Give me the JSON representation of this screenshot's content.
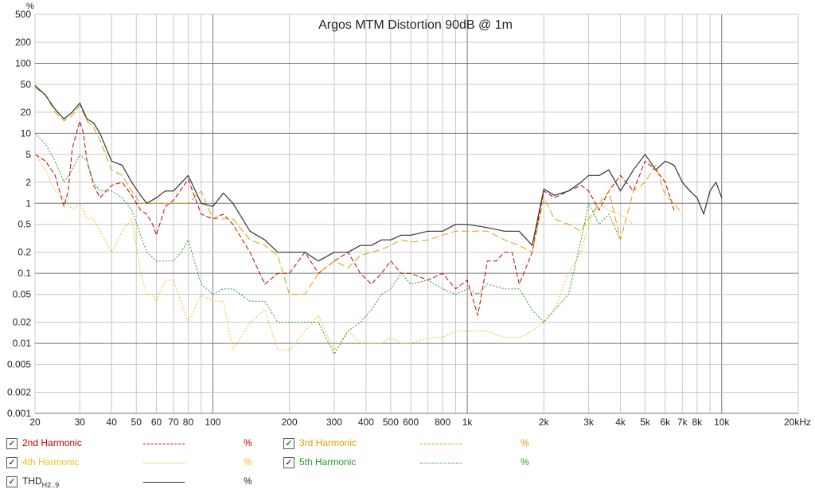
{
  "chart_data": {
    "type": "line",
    "title": "Argos MTM Distortion 90dB @ 1m",
    "ylabel": "%",
    "xlabel": "",
    "xscale": "log",
    "yscale": "log",
    "xlim": [
      20,
      20000
    ],
    "ylim": [
      0.001,
      500
    ],
    "x_ticks": [
      {
        "v": 20,
        "label": "20"
      },
      {
        "v": 30,
        "label": "30"
      },
      {
        "v": 40,
        "label": "40"
      },
      {
        "v": 50,
        "label": "50"
      },
      {
        "v": 60,
        "label": "60"
      },
      {
        "v": 70,
        "label": "70"
      },
      {
        "v": 80,
        "label": "80"
      },
      {
        "v": 100,
        "label": "100"
      },
      {
        "v": 200,
        "label": "200"
      },
      {
        "v": 300,
        "label": "300"
      },
      {
        "v": 400,
        "label": "400"
      },
      {
        "v": 500,
        "label": "500"
      },
      {
        "v": 600,
        "label": "600"
      },
      {
        "v": 800,
        "label": "800"
      },
      {
        "v": 1000,
        "label": "1k"
      },
      {
        "v": 2000,
        "label": "2k"
      },
      {
        "v": 3000,
        "label": "3k"
      },
      {
        "v": 4000,
        "label": "4k"
      },
      {
        "v": 5000,
        "label": "5k"
      },
      {
        "v": 6000,
        "label": "6k"
      },
      {
        "v": 7000,
        "label": "7k"
      },
      {
        "v": 8000,
        "label": "8k"
      },
      {
        "v": 10000,
        "label": "10k"
      },
      {
        "v": 20000,
        "label": "20kHz"
      }
    ],
    "y_ticks": [
      {
        "v": 500,
        "label": "500"
      },
      {
        "v": 200,
        "label": "200"
      },
      {
        "v": 100,
        "label": "100"
      },
      {
        "v": 50,
        "label": "50"
      },
      {
        "v": 20,
        "label": "20"
      },
      {
        "v": 10,
        "label": "10"
      },
      {
        "v": 5,
        "label": "5"
      },
      {
        "v": 2,
        "label": "2"
      },
      {
        "v": 1,
        "label": "1"
      },
      {
        "v": 0.5,
        "label": "0.5"
      },
      {
        "v": 0.2,
        "label": "0.2"
      },
      {
        "v": 0.1,
        "label": "0.1"
      },
      {
        "v": 0.05,
        "label": "0.05"
      },
      {
        "v": 0.02,
        "label": "0.02"
      },
      {
        "v": 0.01,
        "label": "0.01"
      },
      {
        "v": 0.005,
        "label": "0.005"
      },
      {
        "v": 0.002,
        "label": "0.002"
      },
      {
        "v": 0.001,
        "label": "0.001"
      }
    ],
    "grid": true,
    "legend_position": "bottom",
    "series": [
      {
        "name": "2nd Harmonic",
        "name_sub": "",
        "unit": "%",
        "color": "#c00000",
        "dash": "6,3",
        "x": [
          20,
          22,
          24,
          26,
          27,
          28,
          30,
          31,
          32,
          34,
          36,
          40,
          44,
          48,
          52,
          55,
          58,
          60,
          65,
          70,
          80,
          90,
          100,
          110,
          120,
          140,
          160,
          180,
          200,
          230,
          260,
          300,
          340,
          380,
          420,
          460,
          500,
          550,
          600,
          700,
          800,
          900,
          1000,
          1100,
          1200,
          1300,
          1400,
          1500,
          1600,
          1800,
          2000,
          2200,
          2500,
          2800,
          3000,
          3300,
          3600,
          4000,
          4500,
          5000,
          5500,
          6000,
          6500
        ],
        "y": [
          5,
          4,
          2.5,
          0.9,
          1.5,
          6,
          15,
          10,
          4,
          1.8,
          1.2,
          1.8,
          2,
          1.3,
          0.8,
          0.7,
          0.5,
          0.35,
          0.9,
          1.1,
          2.2,
          0.7,
          0.6,
          0.7,
          0.5,
          0.2,
          0.07,
          0.1,
          0.1,
          0.2,
          0.1,
          0.15,
          0.2,
          0.1,
          0.07,
          0.1,
          0.15,
          0.1,
          0.1,
          0.08,
          0.1,
          0.06,
          0.08,
          0.025,
          0.15,
          0.15,
          0.2,
          0.2,
          0.07,
          0.2,
          1.5,
          1.2,
          1.5,
          1.8,
          1.5,
          0.8,
          1.5,
          2.5,
          1.5,
          4,
          3,
          2,
          0.8
        ]
      },
      {
        "name": "3rd Harmonic",
        "name_sub": "",
        "unit": "%",
        "color": "#e0a000",
        "dash": "9,4",
        "x": [
          20,
          22,
          24,
          26,
          28,
          30,
          32,
          34,
          36,
          40,
          44,
          48,
          52,
          55,
          60,
          65,
          70,
          80,
          90,
          100,
          110,
          120,
          140,
          160,
          180,
          200,
          230,
          260,
          300,
          340,
          380,
          420,
          460,
          500,
          550,
          600,
          700,
          800,
          900,
          1000,
          1200,
          1400,
          1600,
          1800,
          2000,
          2200,
          2500,
          2800,
          3000,
          3300,
          3600,
          4000,
          4500,
          5000,
          5500,
          6000,
          6500,
          7000
        ],
        "y": [
          45,
          35,
          20,
          15,
          18,
          25,
          15,
          12,
          8,
          3,
          2.5,
          1.5,
          1,
          1,
          1,
          1,
          1,
          1,
          1.5,
          0.6,
          0.6,
          0.6,
          0.3,
          0.25,
          0.18,
          0.05,
          0.05,
          0.1,
          0.15,
          0.12,
          0.18,
          0.2,
          0.22,
          0.25,
          0.3,
          0.28,
          0.3,
          0.35,
          0.4,
          0.4,
          0.4,
          0.3,
          0.25,
          0.2,
          1.2,
          0.6,
          0.5,
          0.4,
          0.6,
          1,
          1.5,
          0.3,
          1.5,
          2,
          3.5,
          1.3,
          1,
          0.7
        ]
      },
      {
        "name": "4th Harmonic",
        "name_sub": "",
        "unit": "%",
        "color": "#f0c020",
        "dash": "2,2",
        "x": [
          20,
          22,
          24,
          26,
          28,
          30,
          32,
          34,
          36,
          40,
          44,
          48,
          52,
          55,
          58,
          60,
          65,
          70,
          80,
          90,
          100,
          110,
          120,
          140,
          160,
          180,
          200,
          230,
          260,
          300,
          340,
          380,
          420,
          460,
          500,
          550,
          600,
          700,
          800,
          900,
          1000,
          1200,
          1400,
          1600,
          1800,
          2000,
          2200,
          2500,
          2800,
          3000,
          3300,
          3600,
          4000,
          4500
        ],
        "y": [
          5,
          3,
          1.5,
          1.2,
          0.8,
          1,
          0.6,
          0.6,
          0.4,
          0.2,
          0.4,
          0.6,
          0.1,
          0.05,
          0.05,
          0.04,
          0.08,
          0.08,
          0.02,
          0.05,
          0.04,
          0.04,
          0.008,
          0.02,
          0.03,
          0.008,
          0.008,
          0.015,
          0.025,
          0.008,
          0.015,
          0.01,
          0.01,
          0.01,
          0.012,
          0.01,
          0.01,
          0.012,
          0.012,
          0.015,
          0.015,
          0.015,
          0.012,
          0.012,
          0.015,
          0.02,
          0.03,
          0.1,
          0.2,
          0.5,
          1,
          0.8,
          0.7,
          0.5
        ]
      },
      {
        "name": "5th Harmonic",
        "name_sub": "",
        "unit": "%",
        "color": "#2a9a2a",
        "dash": "2,2",
        "x": [
          20,
          22,
          24,
          26,
          28,
          30,
          32,
          34,
          36,
          40,
          44,
          48,
          52,
          55,
          60,
          65,
          70,
          75,
          80,
          90,
          100,
          110,
          120,
          140,
          160,
          180,
          200,
          230,
          260,
          300,
          340,
          380,
          420,
          460,
          500,
          550,
          600,
          700,
          800,
          900,
          1000,
          1100,
          1200,
          1400,
          1600,
          1800,
          2000,
          2200,
          2500,
          2800,
          3000,
          3300,
          3600,
          4000
        ],
        "y": [
          10,
          7,
          4,
          2,
          3,
          5,
          4,
          2,
          1.5,
          1.5,
          1.2,
          0.8,
          0.35,
          0.2,
          0.15,
          0.15,
          0.15,
          0.2,
          0.3,
          0.07,
          0.05,
          0.06,
          0.06,
          0.04,
          0.04,
          0.02,
          0.02,
          0.02,
          0.02,
          0.007,
          0.015,
          0.02,
          0.03,
          0.05,
          0.06,
          0.1,
          0.07,
          0.08,
          0.06,
          0.05,
          0.06,
          0.05,
          0.07,
          0.06,
          0.06,
          0.03,
          0.02,
          0.03,
          0.05,
          0.3,
          1,
          0.5,
          0.7,
          0.3
        ]
      },
      {
        "name": "THD",
        "name_sub": "H2..9",
        "unit": "%",
        "color": "#333333",
        "dash": "",
        "x": [
          20,
          22,
          24,
          26,
          28,
          30,
          32,
          34,
          36,
          40,
          44,
          48,
          52,
          55,
          60,
          65,
          70,
          80,
          90,
          100,
          110,
          120,
          140,
          160,
          180,
          200,
          230,
          260,
          300,
          340,
          380,
          420,
          460,
          500,
          550,
          600,
          700,
          800,
          900,
          1000,
          1200,
          1400,
          1600,
          1800,
          2000,
          2200,
          2500,
          2800,
          3000,
          3300,
          3600,
          4000,
          4500,
          5000,
          5500,
          6000,
          6500,
          7000,
          7500,
          8000,
          8500,
          9000,
          9500,
          10000
        ],
        "y": [
          48,
          35,
          22,
          16,
          20,
          27,
          16,
          14,
          10,
          4,
          3.5,
          2,
          1.3,
          1,
          1.2,
          1.5,
          1.5,
          2.5,
          1,
          0.9,
          1.4,
          1,
          0.4,
          0.3,
          0.2,
          0.2,
          0.2,
          0.15,
          0.2,
          0.2,
          0.25,
          0.25,
          0.3,
          0.3,
          0.35,
          0.35,
          0.4,
          0.4,
          0.5,
          0.5,
          0.45,
          0.4,
          0.4,
          0.25,
          1.6,
          1.3,
          1.5,
          2,
          2.5,
          2.5,
          3,
          1.5,
          3,
          5,
          3,
          4,
          3.5,
          2,
          1.5,
          1.2,
          0.7,
          1.5,
          2,
          1.2
        ]
      }
    ]
  }
}
